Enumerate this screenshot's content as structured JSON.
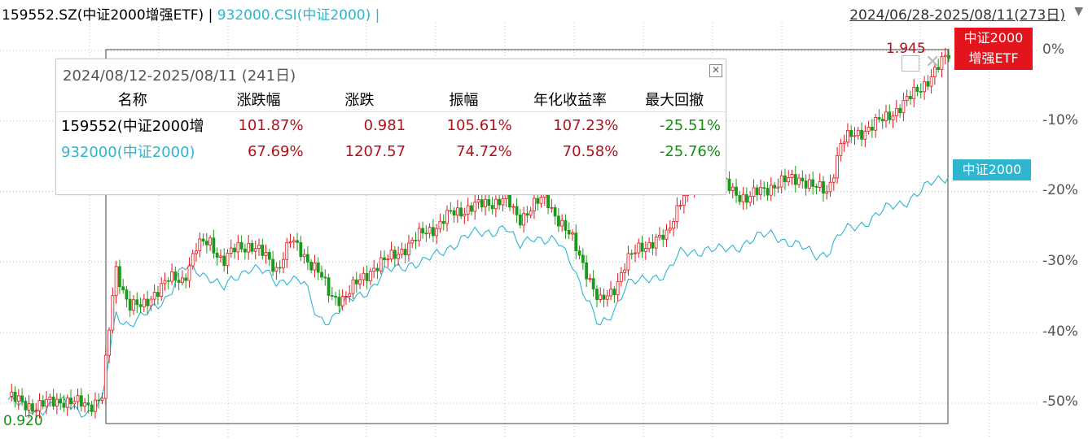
{
  "header": {
    "title": "159552.SZ(中证2000增强ETF)",
    "sep1": " | ",
    "index_title": "932000.CSI(中证2000)",
    "sep2": " |",
    "range": "2024/06/28-2025/08/11(273日)"
  },
  "labels": {
    "etf_line1": "中证2000",
    "etf_line2": "增强ETF",
    "index": "中证2000",
    "end_price": "1.945",
    "start_price": "0.920"
  },
  "y_axis_ticks": [
    "0%",
    "-10%",
    "-20%",
    "-30%",
    "-40%",
    "-50%"
  ],
  "popup": {
    "title": "2024/08/12-2025/08/11 (241日)",
    "columns": [
      "名称",
      "涨跌幅",
      "涨跌",
      "振幅",
      "年化收益率",
      "最大回撤"
    ],
    "rows": [
      {
        "name": "159552(中证2000增",
        "pct": "101.87%",
        "chg": "0.981",
        "amp": "105.61%",
        "ann": "107.23%",
        "mdd": "-25.51%"
      },
      {
        "name": "932000(中证2000)",
        "pct": "67.69%",
        "chg": "1207.57",
        "amp": "74.72%",
        "ann": "70.58%",
        "mdd": "-25.76%"
      }
    ]
  },
  "colors": {
    "up": "#e3141c",
    "down": "#1a9a1a",
    "index_line": "#2fb5d0",
    "grid": "#bfbfbf",
    "text_red": "#b0121b",
    "text_green": "#138f13"
  },
  "chart_data": {
    "type": "line",
    "x_range": [
      "2024/06/28",
      "2025/08/11"
    ],
    "ylim": [
      -50,
      0
    ],
    "y_ticks": [
      "0%",
      "-10%",
      "-20%",
      "-30%",
      "-40%",
      "-50%"
    ],
    "series": [
      {
        "name": "中证2000增强ETF",
        "values": [
          -49,
          -50,
          -50.5,
          -50,
          -49.5,
          -50,
          -50.3,
          -49,
          -31,
          -36,
          -36.5,
          -34,
          -32.5,
          -32.5,
          -28,
          -27,
          -30,
          -28,
          -27.5,
          -29,
          -31,
          -27,
          -29,
          -31,
          -35,
          -35,
          -33,
          -31,
          -30,
          -28.5,
          -27.5,
          -25.5,
          -25,
          -23,
          -22.5,
          -22,
          -21.5,
          -21,
          -24,
          -22,
          -21,
          -24,
          -27,
          -31,
          -36,
          -34,
          -30,
          -28,
          -27,
          -26.5,
          -21,
          -19,
          -18,
          -18.5,
          -20,
          -21,
          -20,
          -19,
          -18.5,
          -18,
          -19.5,
          -20,
          -13,
          -12,
          -11,
          -10,
          -8.5,
          -7,
          -5,
          -3,
          -0.5
        ]
      },
      {
        "name": "中证2000",
        "values": [
          -49.5,
          -50.5,
          -51,
          -50.5,
          -50,
          -50.5,
          -51.5,
          -50,
          -37,
          -39,
          -38,
          -36,
          -34.5,
          -31,
          -31,
          -32,
          -34,
          -32,
          -30.5,
          -31.5,
          -33,
          -32,
          -33,
          -38,
          -38,
          -36,
          -35,
          -33.5,
          -31.5,
          -31,
          -30,
          -30,
          -29,
          -27.5,
          -26.5,
          -26,
          -25.5,
          -25,
          -28,
          -26,
          -27,
          -27.5,
          -30,
          -35,
          -39.5,
          -37,
          -33,
          -33,
          -32,
          -31.5,
          -29,
          -28.5,
          -28,
          -28.5,
          -28,
          -27,
          -26.5,
          -26,
          -27,
          -28,
          -29,
          -28.5,
          -26,
          -25,
          -24,
          -23,
          -22,
          -21,
          -20,
          -18.5,
          -17.5
        ]
      }
    ]
  }
}
